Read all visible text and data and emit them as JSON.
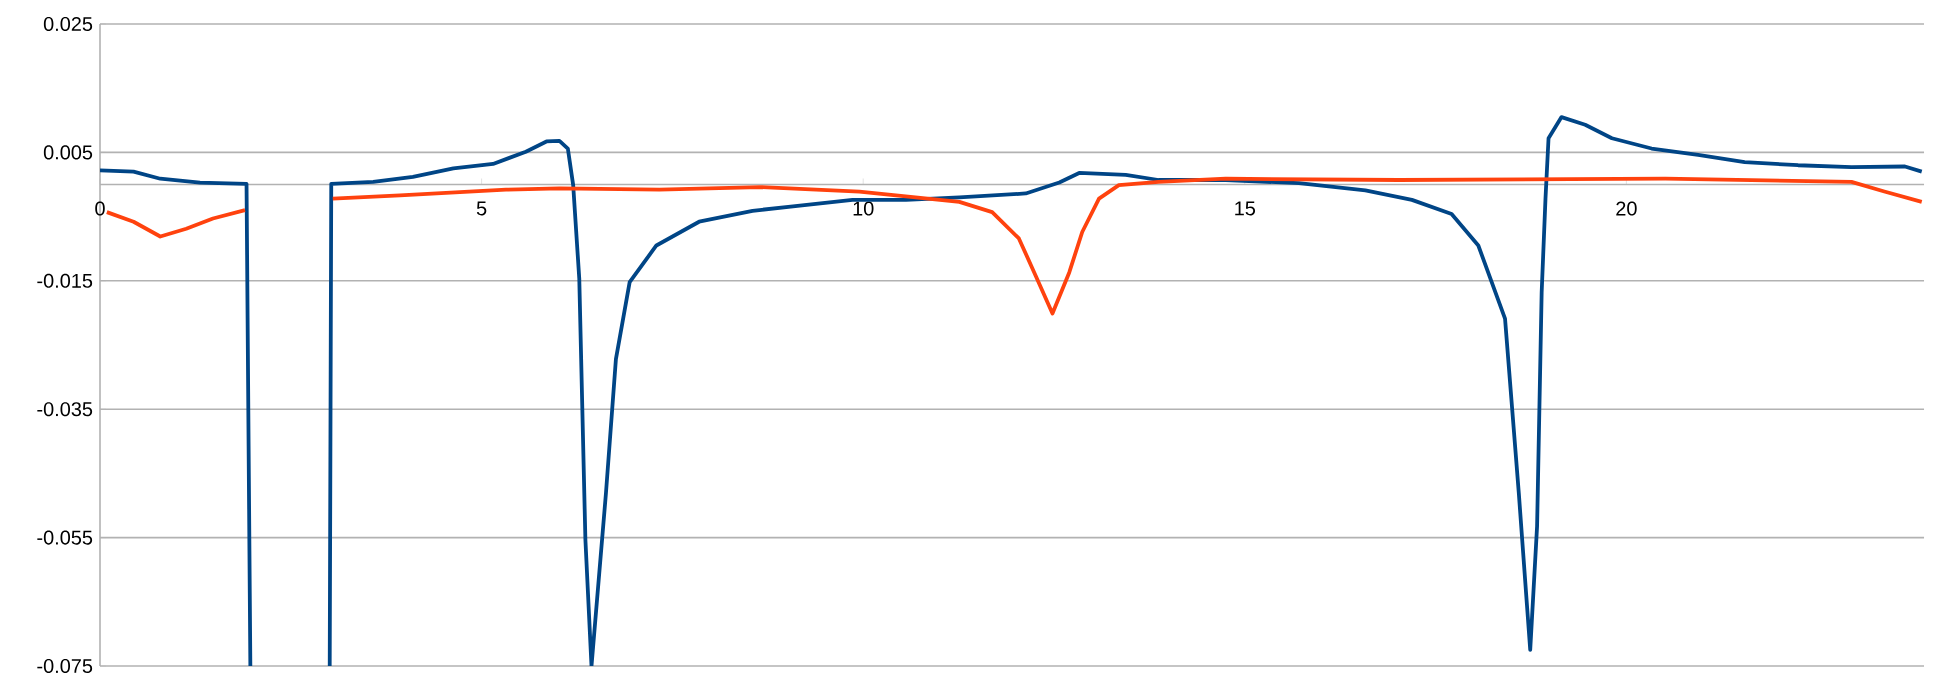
{
  "chart_data": {
    "type": "line",
    "xlim": [
      0,
      23.9
    ],
    "ylim": [
      -0.075,
      0.025
    ],
    "xticks": [
      0,
      5,
      10,
      15,
      20
    ],
    "yticks": [
      -0.075,
      -0.055,
      -0.035,
      -0.015,
      0.005,
      0.025
    ],
    "grid": "y",
    "series": [
      {
        "color": "#004586",
        "x": [
          0,
          0.44,
          0.79,
          1.31,
          1.92,
          1.97,
          2.5,
          3.01,
          3.03,
          3.58,
          4.1,
          4.63,
          5.15,
          5.58,
          5.85,
          6.02,
          6.13,
          6.2,
          6.28,
          6.36,
          6.44,
          6.63,
          6.76,
          6.94,
          7.29,
          7.85,
          8.55,
          9.08,
          9.86,
          10.56,
          11.26,
          12.13,
          12.57,
          12.83,
          13.44,
          13.87,
          14.75,
          15.71,
          16.58,
          17.19,
          17.71,
          18.06,
          18.41,
          18.59,
          18.74,
          18.83,
          18.89,
          18.94,
          18.98,
          19.15,
          19.46,
          19.81,
          20.33,
          20.94,
          21.55,
          22.25,
          22.95,
          23.65,
          23.87
        ],
        "values": [
          0.0022,
          0.002,
          0.0009,
          0.0003,
          0.0001,
          -0.075,
          null,
          -0.075,
          0.0001,
          0.0004,
          0.0012,
          0.0025,
          0.0032,
          0.0051,
          0.0067,
          0.0068,
          0.0056,
          -0.0001,
          -0.0147,
          -0.0553,
          -0.075,
          -0.048,
          -0.0272,
          -0.0152,
          -0.0095,
          -0.0058,
          -0.0041,
          -0.0034,
          -0.0024,
          -0.0024,
          -0.002,
          -0.0014,
          0.0003,
          0.0018,
          0.0015,
          0.0007,
          0.0007,
          0.0002,
          -0.0009,
          -0.0024,
          -0.0046,
          -0.0095,
          -0.0209,
          -0.048,
          -0.0725,
          -0.0532,
          -0.0168,
          -0.0022,
          0.0072,
          0.0105,
          0.0093,
          0.0072,
          0.0056,
          0.0046,
          0.0035,
          0.003,
          0.0027,
          0.0028,
          0.002
        ]
      },
      {
        "color": "#ff420e",
        "x": [
          0.09,
          0.44,
          0.79,
          1.13,
          1.48,
          1.9,
          2.5,
          3.05,
          3.93,
          5.32,
          6.02,
          7.33,
          8.64,
          9.95,
          11.26,
          11.69,
          12.04,
          12.26,
          12.48,
          12.7,
          12.87,
          13.09,
          13.35,
          13.87,
          14.75,
          17.02,
          20.51,
          22.95,
          23.38,
          23.87
        ],
        "values": [
          -0.0043,
          -0.0058,
          -0.0081,
          -0.0069,
          -0.0053,
          -0.004,
          null,
          -0.0022,
          -0.0017,
          -0.0008,
          -0.0006,
          -0.0008,
          -0.0004,
          -0.0011,
          -0.0027,
          -0.0043,
          -0.0084,
          -0.0142,
          -0.0201,
          -0.0137,
          -0.0074,
          -0.0022,
          -0.0001,
          0.0004,
          0.0009,
          0.0007,
          0.0009,
          0.0004,
          -0.0011,
          -0.0027
        ]
      }
    ]
  }
}
